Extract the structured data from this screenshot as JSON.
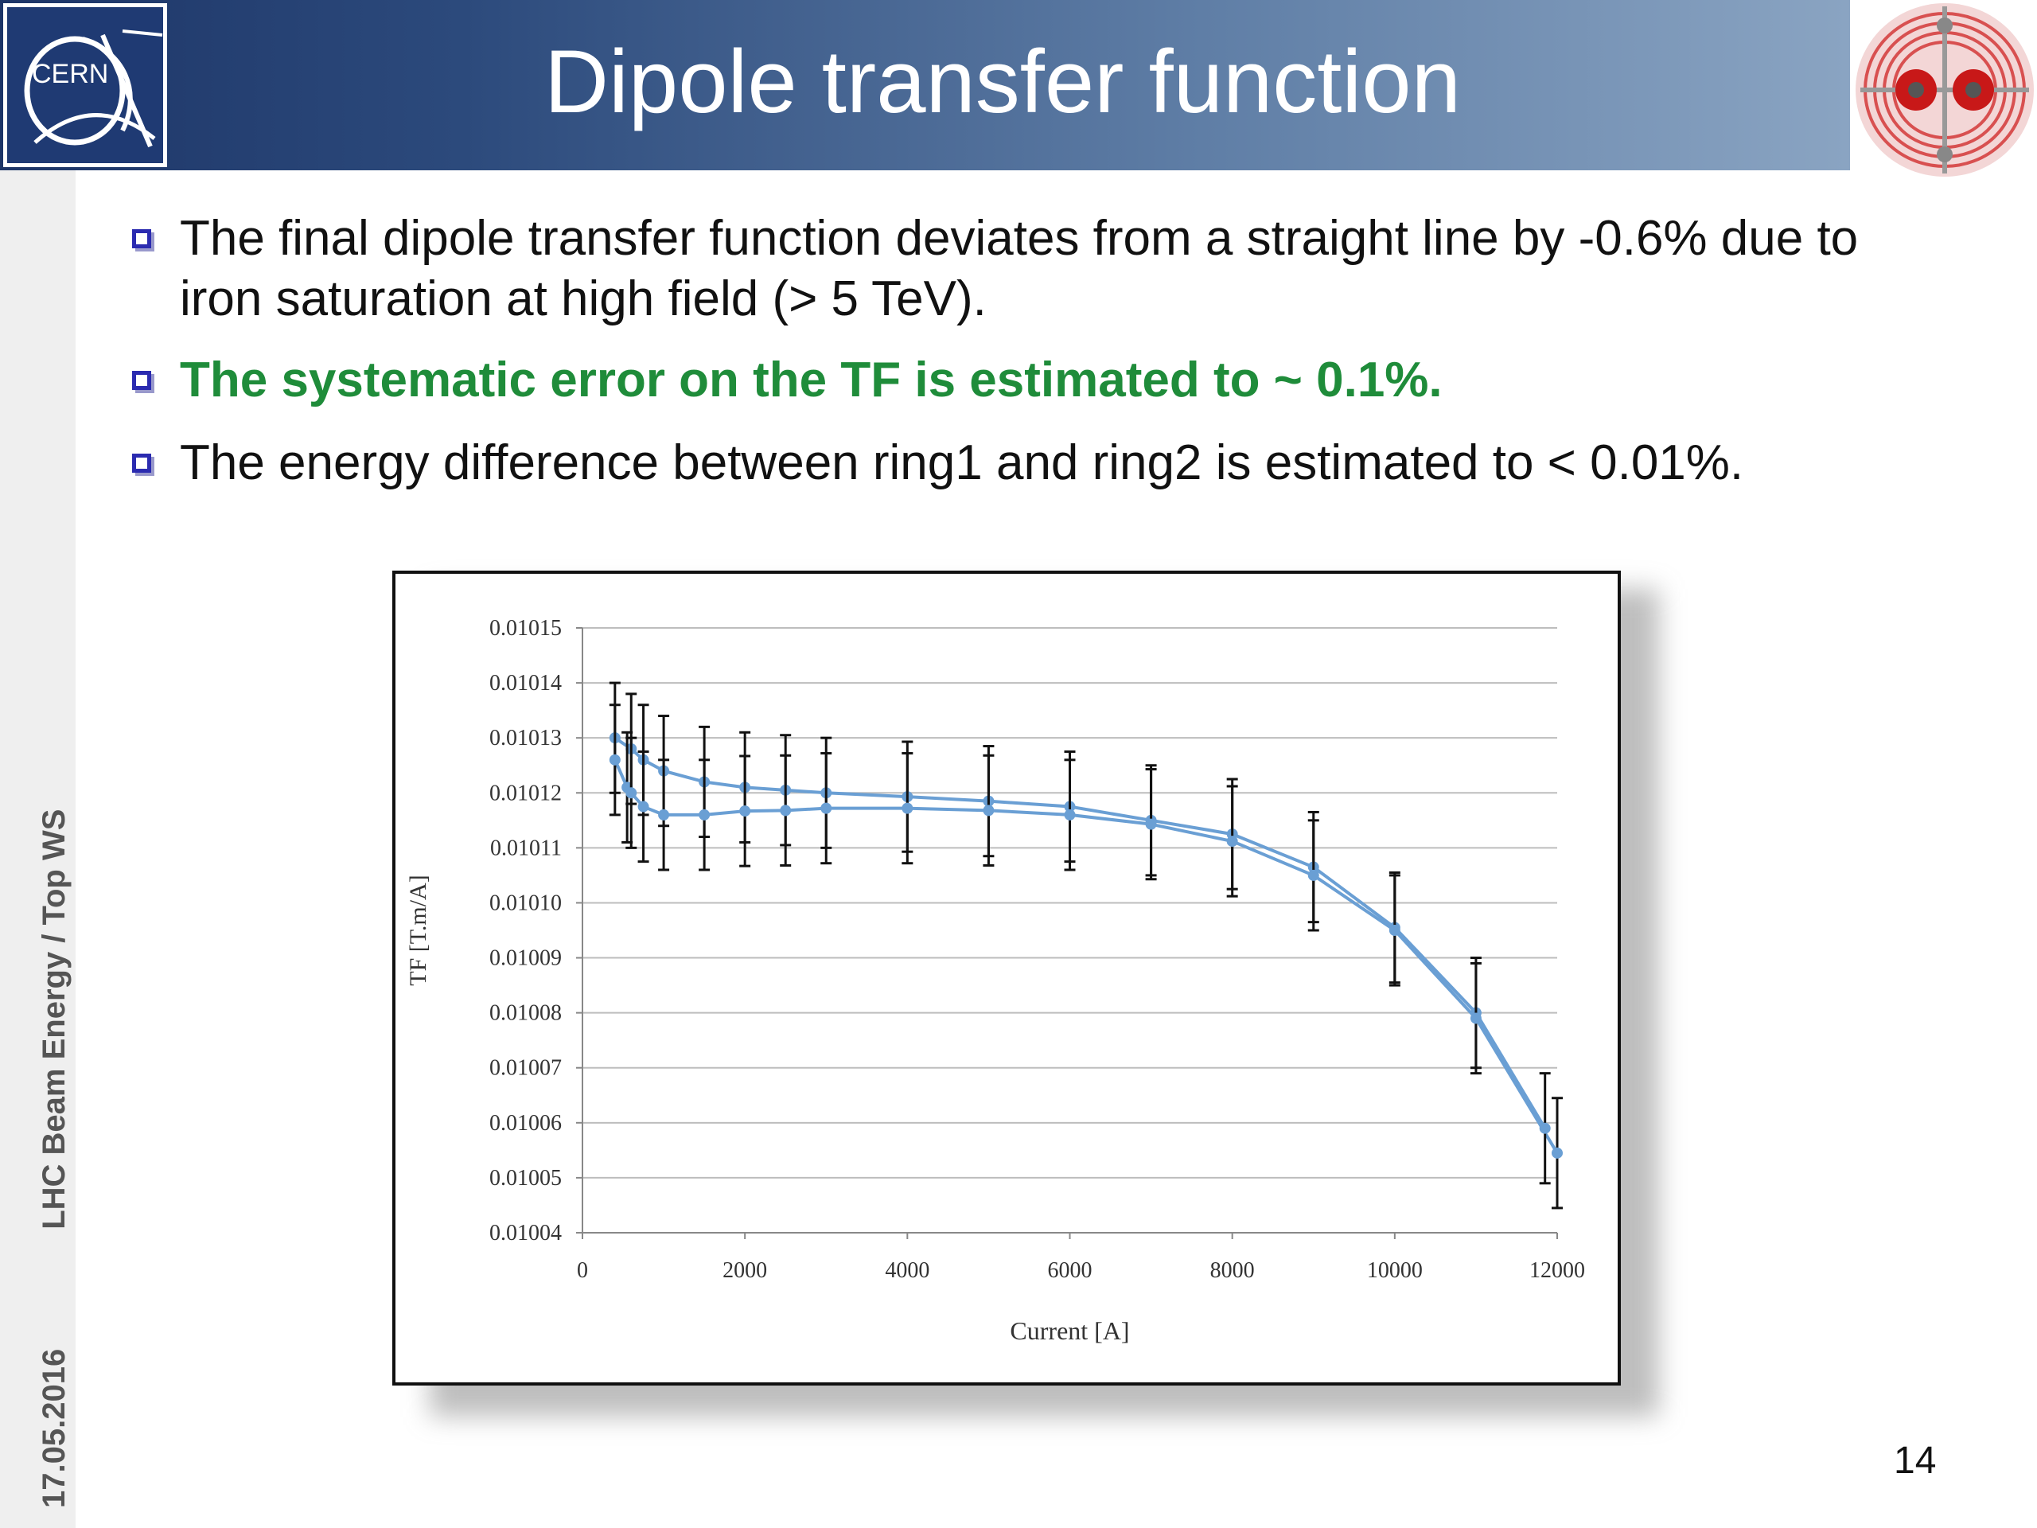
{
  "slide": {
    "title": "Dipole transfer function",
    "page_number": "14",
    "footer_date": "17.05.2016",
    "footer_event": "LHC Beam Energy / Top WS",
    "logo_text": "CERN",
    "bullets": [
      "The final dipole transfer function deviates from a straight line by -0.6% due to iron saturation at high field (> 5 TeV).",
      "The systematic error on the TF is estimated to ~ 0.1%.",
      "The energy difference between ring1 and ring2 is estimated to < 0.01%."
    ],
    "colors": {
      "header_dark": "#1d3567",
      "header_light": "#8aa4c2",
      "highlight_text": "#1f8c3a",
      "bullet_box": "#2b2bb0",
      "series": "#6a9fd4"
    }
  },
  "chart_data": {
    "type": "line",
    "xlabel": "Current [A]",
    "ylabel": "TF [T.m/A]",
    "xlim": [
      0,
      12000
    ],
    "ylim": [
      0.01004,
      0.01015
    ],
    "xticks": [
      "0",
      "2000",
      "4000",
      "6000",
      "8000",
      "10000",
      "12000"
    ],
    "yticks": [
      "0.01004",
      "0.01005",
      "0.01006",
      "0.01007",
      "0.01008",
      "0.01009",
      "0.01010",
      "0.01011",
      "0.01012",
      "0.01013",
      "0.01014",
      "0.01015"
    ],
    "grid": "horizontal",
    "error_bar": 1e-05,
    "series": [
      {
        "x": [
          400,
          600,
          750,
          1000,
          1500,
          2000,
          2500,
          3000,
          4000,
          5000,
          6000,
          7000,
          8000,
          9000,
          10000,
          11000,
          11850
        ],
        "y": [
          0.01013,
          0.010128,
          0.010126,
          0.010124,
          0.010122,
          0.010121,
          0.0101205,
          0.01012,
          0.0101193,
          0.0101185,
          0.0101175,
          0.010115,
          0.0101125,
          0.0101065,
          0.0100955,
          0.01008,
          0.010059
        ]
      },
      {
        "x": [
          400,
          550,
          600,
          750,
          1000,
          1500,
          2000,
          2500,
          3000,
          4000,
          5000,
          6000,
          7000,
          8000,
          9000,
          10000,
          11000,
          12000
        ],
        "y": [
          0.010126,
          0.010121,
          0.01012,
          0.0101175,
          0.010116,
          0.010116,
          0.0101167,
          0.0101168,
          0.0101172,
          0.0101172,
          0.0101168,
          0.010116,
          0.0101143,
          0.0101112,
          0.010105,
          0.010095,
          0.010079,
          0.0100545
        ]
      }
    ]
  }
}
